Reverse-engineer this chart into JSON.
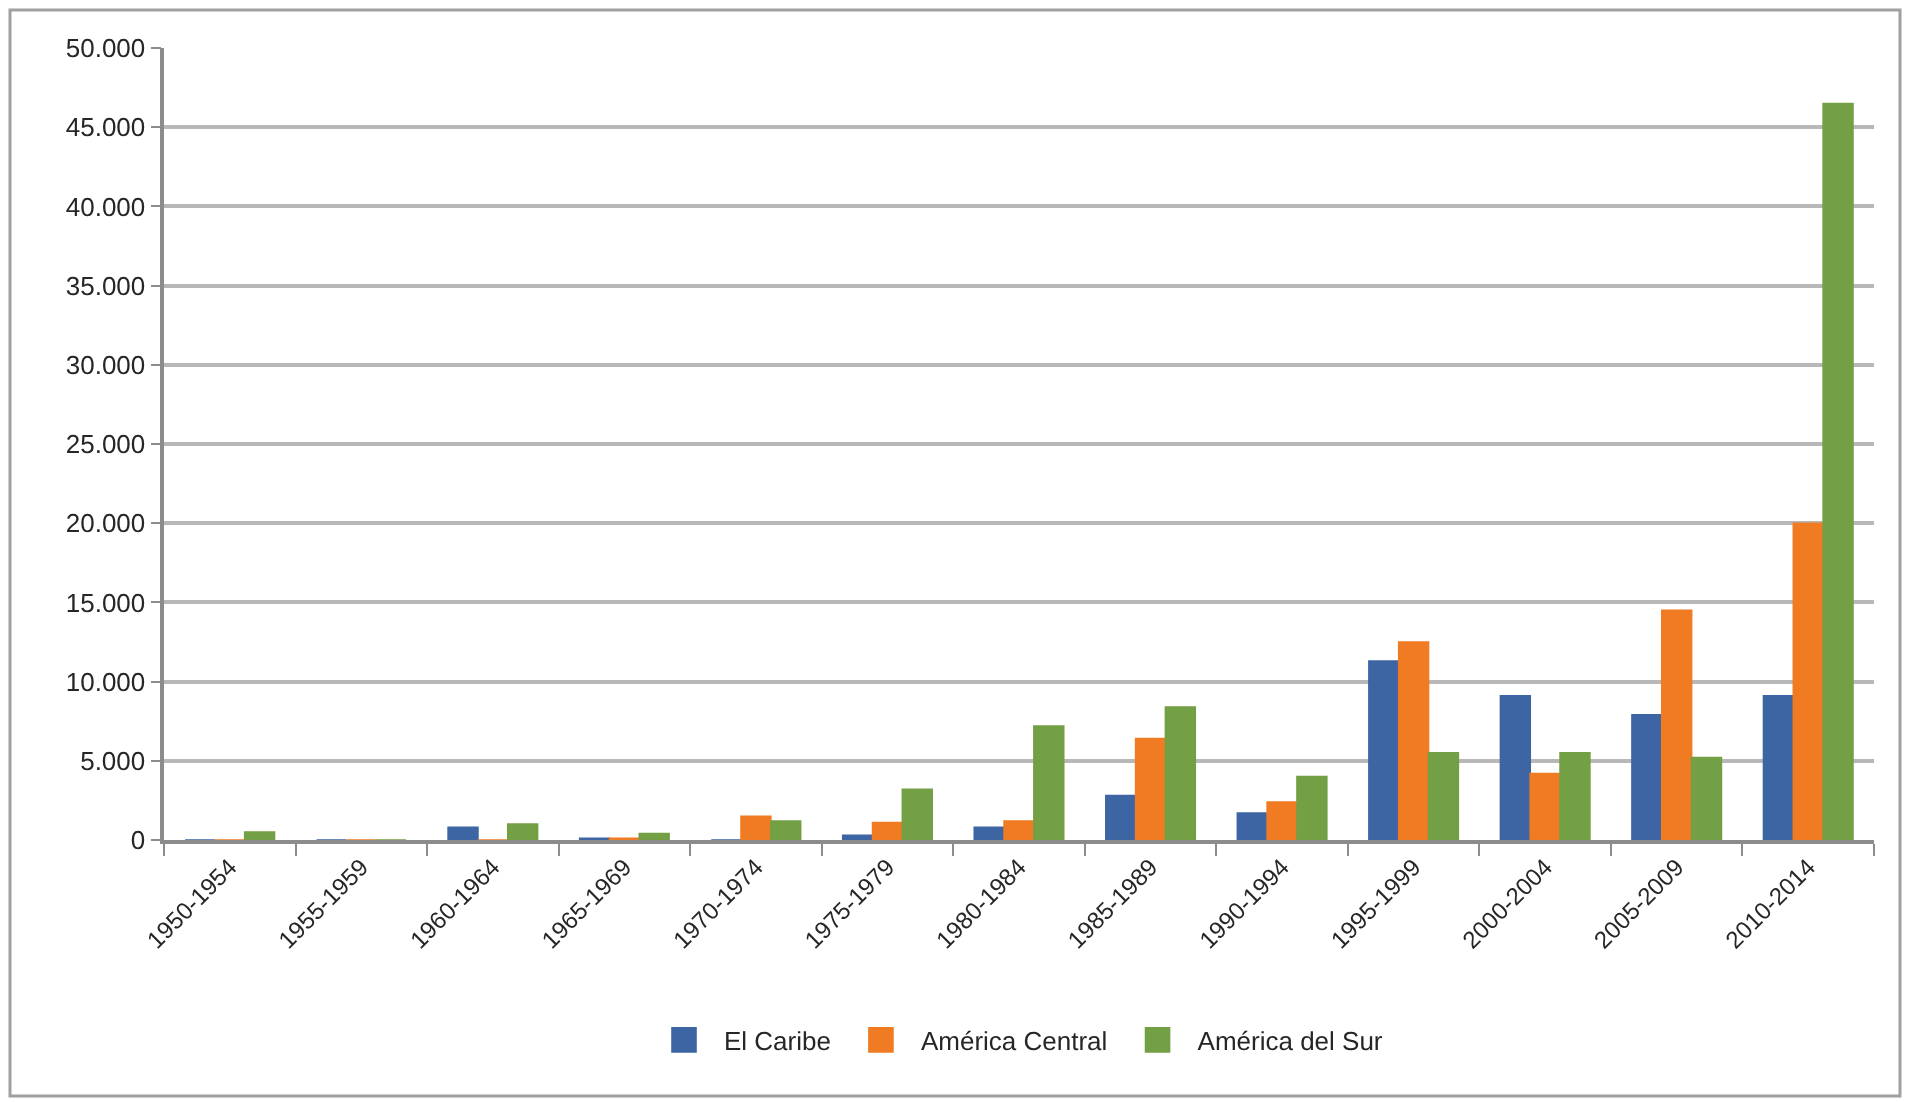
{
  "chart_data": {
    "type": "bar",
    "categories": [
      "1950-1954",
      "1955-1959",
      "1960-1964",
      "1965-1969",
      "1970-1974",
      "1975-1979",
      "1980-1984",
      "1985-1989",
      "1990-1994",
      "1995-1999",
      "2000-2004",
      "2005-2009",
      "2010-2014"
    ],
    "series": [
      {
        "name": "El Caribe",
        "color": "#3e65a3",
        "values": [
          0,
          0,
          800,
          100,
          0,
          300,
          800,
          2800,
          1700,
          11300,
          9100,
          7900,
          9100
        ]
      },
      {
        "name": "América Central",
        "color": "#f07b22",
        "values": [
          0,
          0,
          0,
          100,
          1500,
          1100,
          1200,
          6400,
          2400,
          12500,
          4200,
          14500,
          20000
        ]
      },
      {
        "name": "América del Sur",
        "color": "#739f45",
        "values": [
          500,
          0,
          1000,
          400,
          1200,
          3200,
          7200,
          8400,
          4000,
          5500,
          5500,
          5200,
          46500
        ]
      }
    ],
    "ylim": [
      0,
      50000
    ],
    "yticks": [
      0,
      {
        "value": 5000,
        "label": "5.000"
      },
      {
        "value": 10000,
        "label": "10.000"
      },
      {
        "value": 15000,
        "label": "15.000"
      },
      {
        "value": 20000,
        "label": "20.000"
      },
      {
        "value": 25000,
        "label": "25.000"
      },
      {
        "value": 30000,
        "label": "30.000"
      },
      {
        "value": 35000,
        "label": "35.000"
      },
      {
        "value": 40000,
        "label": "40.000"
      },
      {
        "value": 45000,
        "label": "45.000"
      },
      {
        "value": 50000,
        "label": "50.000"
      }
    ],
    "grid": "y",
    "legend": "bottom"
  }
}
